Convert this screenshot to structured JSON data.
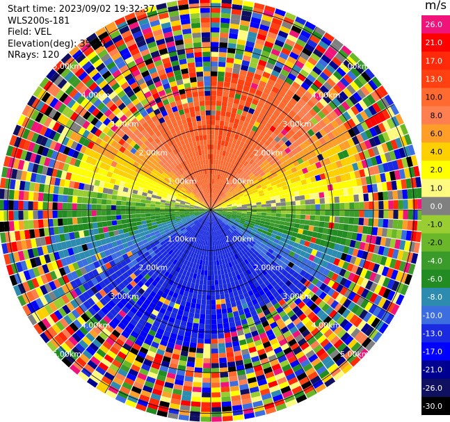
{
  "header": {
    "start_time": "Start time: 2023/09/02 19:32:37",
    "instrument": "WLS200s-181",
    "field": "Field: VEL",
    "elevation": "Elevation(deg): 35.30",
    "nrays": "NRays: 120"
  },
  "colorbar": {
    "unit": "m/s",
    "levels": [
      {
        "label": "26.0",
        "color": "#f0147a"
      },
      {
        "label": "21.0",
        "color": "#ff0000"
      },
      {
        "label": "17.0",
        "color": "#ff2a0a"
      },
      {
        "label": "13.0",
        "color": "#ff4010"
      },
      {
        "label": "10.0",
        "color": "#ff6a30"
      },
      {
        "label": "8.0",
        "color": "#ff7f50"
      },
      {
        "label": "6.0",
        "color": "#ff9f2a"
      },
      {
        "label": "4.0",
        "color": "#ffd000"
      },
      {
        "label": "2.0",
        "color": "#ffff00"
      },
      {
        "label": "1.0",
        "color": "#fffa80"
      },
      {
        "label": "0.0",
        "color": "#808080"
      },
      {
        "label": "-1.0",
        "color": "#9acd32"
      },
      {
        "label": "-2.0",
        "color": "#6ab82a"
      },
      {
        "label": "-4.0",
        "color": "#3a9a2a"
      },
      {
        "label": "-6.0",
        "color": "#228b22"
      },
      {
        "label": "-8.0",
        "color": "#2e8bb0"
      },
      {
        "label": "-10.0",
        "color": "#3c6ee0"
      },
      {
        "label": "-13.0",
        "color": "#1a2ae0"
      },
      {
        "label": "-17.0",
        "color": "#0000ff"
      },
      {
        "label": "-21.0",
        "color": "#000090"
      },
      {
        "label": "-26.0",
        "color": "#101060"
      },
      {
        "label": "-30.0",
        "color": "#000000"
      }
    ]
  },
  "chart_data": {
    "type": "heatmap",
    "projection": "PPI (polar)",
    "field": "VEL",
    "units": "m/s",
    "nrays": 120,
    "range_rings_km": [
      1.0,
      2.0,
      3.0,
      4.0,
      5.0
    ],
    "ring_labels": [
      "1.00km",
      "2.00km",
      "3.00km",
      "4.00km",
      "5.00km"
    ],
    "max_range_km": 5.2,
    "dominant_velocity_by_azimuth": {
      "north": "+10 to +17 (orange-red)",
      "east_west": "0 to +2 (grey/yellow)",
      "southwest": "-2 to -8 (green)",
      "south": "-8 to -13 (blue)"
    },
    "outer_noise": "random mixed colors beyond ~3.5 km"
  }
}
